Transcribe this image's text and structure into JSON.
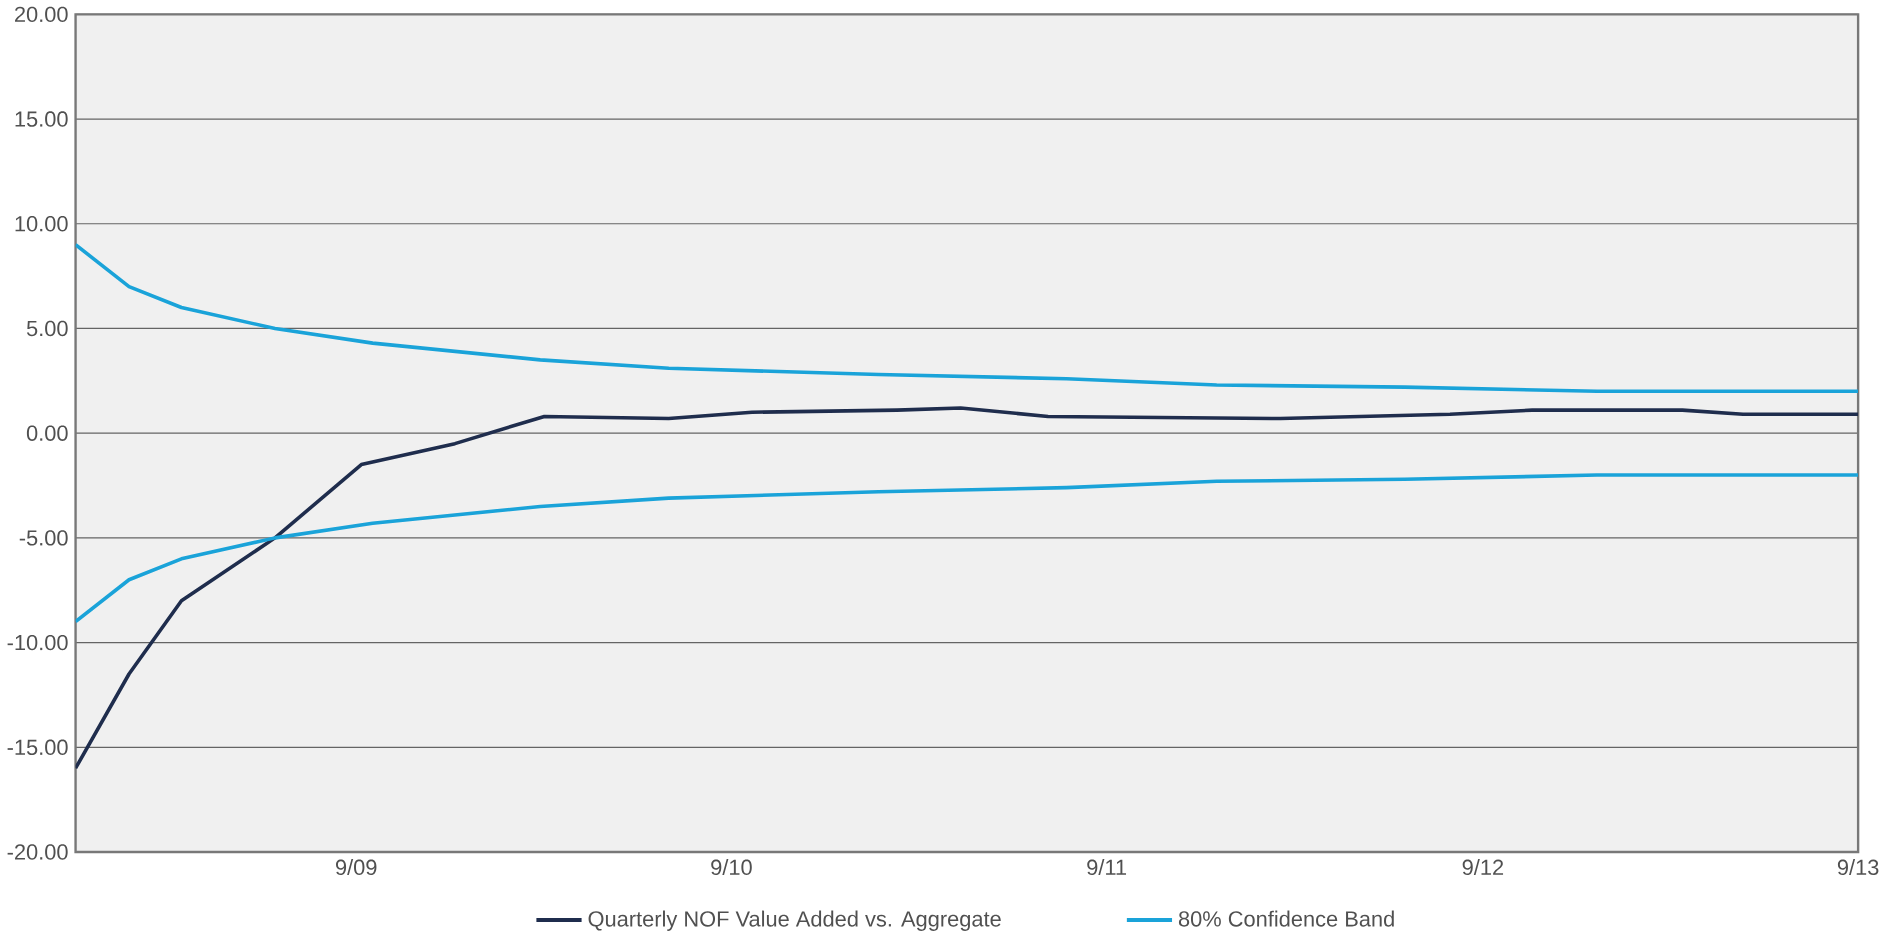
{
  "chart_data": {
    "type": "line",
    "xlim": [
      "2008-12-31",
      "2013-09-30"
    ],
    "xticks": [
      {
        "value": "2009-09-30",
        "label": "9/09"
      },
      {
        "value": "2010-09-30",
        "label": "9/10"
      },
      {
        "value": "2011-09-30",
        "label": "9/11"
      },
      {
        "value": "2012-09-30",
        "label": "9/12"
      },
      {
        "value": "2013-09-30",
        "label": "9/13"
      }
    ],
    "ylim": [
      -20,
      20
    ],
    "yticks": [
      {
        "value": -20,
        "label": "-20.00"
      },
      {
        "value": -15,
        "label": "-15.00"
      },
      {
        "value": -10,
        "label": "-10.00"
      },
      {
        "value": -5,
        "label": "-5.00"
      },
      {
        "value": 0,
        "label": "0.00"
      },
      {
        "value": 5,
        "label": "5.00"
      },
      {
        "value": 10,
        "label": "10.00"
      },
      {
        "value": 15,
        "label": "15.00"
      },
      {
        "value": 20,
        "label": "20.00"
      }
    ],
    "grid": "y",
    "legend": "bottom",
    "marker": "none",
    "line_style": "solid",
    "series": [
      {
        "name": "Quarterly NOF Value Added vs. Aggregate",
        "color": "#1f2d4d",
        "x": [
          "2008-12-31",
          "2009-02-21",
          "2009-04-13",
          "2009-07-13",
          "2009-10-05",
          "2010-01-04",
          "2010-04-01",
          "2010-07-31",
          "2010-10-20",
          "2011-03-10",
          "2011-05-11",
          "2011-08-04",
          "2012-03-17",
          "2012-08-29",
          "2012-11-17",
          "2013-04-12",
          "2013-06-10",
          "2013-09-30"
        ],
        "values": [
          -16,
          -11.5,
          -8,
          -5,
          -1.5,
          -0.5,
          0.8,
          0.7,
          1.0,
          1.1,
          1.2,
          0.8,
          0.7,
          0.9,
          1.1,
          1.1,
          0.9,
          0.9
        ]
      },
      {
        "name": "80% Confidence Band",
        "color": "#1aa3d9",
        "x": [
          "2008-12-31",
          "2009-02-21",
          "2009-04-13",
          "2009-07-13",
          "2009-10-16",
          "2010-03-28",
          "2010-07-31",
          "2011-02-20",
          "2011-08-22",
          "2012-01-15",
          "2012-07-16",
          "2013-01-19",
          "2013-09-30"
        ],
        "values": [
          9,
          7,
          6,
          5,
          4.3,
          3.5,
          3.1,
          2.8,
          2.6,
          2.3,
          2.2,
          2.0,
          2.0
        ]
      },
      {
        "color": "#1aa3d9",
        "x": [
          "2008-12-31",
          "2009-02-21",
          "2009-04-13",
          "2009-07-13",
          "2009-10-16",
          "2010-03-28",
          "2010-07-31",
          "2011-02-20",
          "2011-08-22",
          "2012-01-15",
          "2012-07-16",
          "2013-01-19",
          "2013-09-30"
        ],
        "values": [
          -9,
          -7,
          -6,
          -5,
          -4.3,
          -3.5,
          -3.1,
          -2.8,
          -2.6,
          -2.3,
          -2.2,
          -2.0,
          -2.0
        ]
      }
    ]
  }
}
